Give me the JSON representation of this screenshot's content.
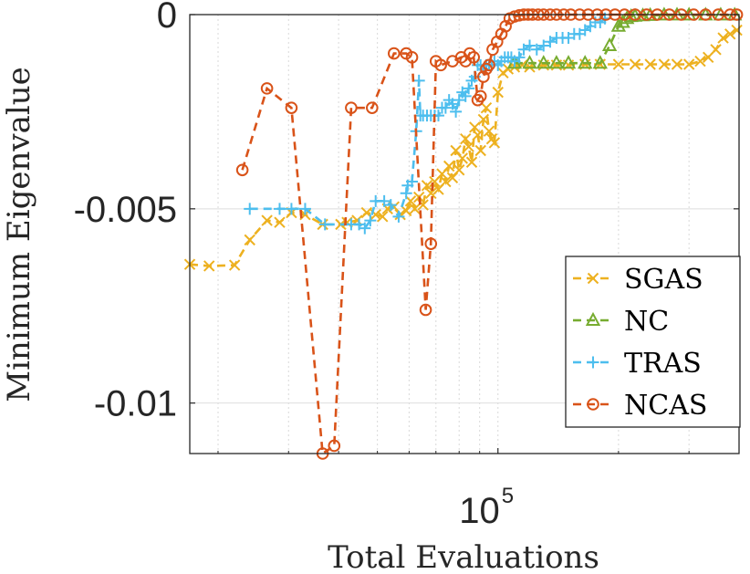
{
  "chart_data": {
    "type": "line",
    "title": "",
    "xlabel": "Total Evaluations",
    "ylabel": "Minimum Eigenvalue",
    "xscale": "log",
    "xlim": [
      17000,
      400000
    ],
    "ylim": [
      -0.0113,
      0.0
    ],
    "grid": true,
    "legend_position": "bottom-right",
    "x_ticks": [
      {
        "value": 100000,
        "base": "10",
        "exp": "5"
      }
    ],
    "x_minor_ticks": [
      20000,
      30000,
      40000,
      50000,
      60000,
      70000,
      80000,
      90000,
      200000,
      300000
    ],
    "y_ticks": [
      {
        "value": 0,
        "label": "0"
      },
      {
        "value": -0.005,
        "label": "-0.005"
      },
      {
        "value": -0.01,
        "label": "-0.01"
      }
    ],
    "series": [
      {
        "name": "SGAS",
        "color": "#EDB120",
        "marker": "x",
        "x": [
          17000,
          19000,
          22000,
          24000,
          26500,
          28500,
          30500,
          33000,
          36500,
          40500,
          42000,
          44500,
          47000,
          49500,
          51500,
          53000,
          55000,
          57000,
          59000,
          60500,
          62000,
          63500,
          65000,
          66500,
          68000,
          69500,
          71000,
          72500,
          74000,
          75500,
          77000,
          78500,
          80000,
          81500,
          83000,
          84500,
          86000,
          87500,
          89000,
          90500,
          92000,
          93500,
          95000,
          96500,
          98000,
          100000,
          103000,
          106000,
          110000,
          115000,
          120000,
          130000,
          140000,
          150000,
          165000,
          180000,
          200000,
          220000,
          240000,
          260000,
          280000,
          300000,
          320000,
          335000,
          350000,
          365000,
          380000,
          395000
        ],
        "y": [
          -0.00643,
          -0.00647,
          -0.00645,
          -0.0058,
          -0.0053,
          -0.00535,
          -0.0051,
          -0.00515,
          -0.0054,
          -0.0054,
          -0.00535,
          -0.0053,
          -0.0051,
          -0.00515,
          -0.0052,
          -0.005,
          -0.00495,
          -0.00515,
          -0.00505,
          -0.0048,
          -0.005,
          -0.0047,
          -0.0049,
          -0.0044,
          -0.0046,
          -0.0043,
          -0.0045,
          -0.0041,
          -0.0043,
          -0.0039,
          -0.0042,
          -0.0035,
          -0.004,
          -0.0037,
          -0.0032,
          -0.0034,
          -0.0038,
          -0.0029,
          -0.0031,
          -0.0035,
          -0.0027,
          -0.0024,
          -0.003,
          -0.0032,
          -0.0033,
          -0.002,
          -0.0015,
          -0.0014,
          -0.00135,
          -0.0013,
          -0.00135,
          -0.0013,
          -0.0013,
          -0.0013,
          -0.00128,
          -0.00128,
          -0.00128,
          -0.00128,
          -0.00128,
          -0.00128,
          -0.00128,
          -0.00128,
          -0.0012,
          -0.0011,
          -0.0009,
          -0.0006,
          -0.0005,
          -0.0004
        ]
      },
      {
        "name": "NC",
        "color": "#77AC30",
        "marker": "triangle",
        "x": [
          110000,
          120000,
          130000,
          140000,
          150000,
          165000,
          180000,
          190000,
          200000,
          205000,
          210000,
          215000,
          220000,
          230000,
          240000,
          260000,
          280000,
          300000,
          330000,
          360000,
          390000
        ],
        "y": [
          -0.00125,
          -0.00125,
          -0.00125,
          -0.00125,
          -0.00125,
          -0.00125,
          -0.00125,
          -0.0008,
          -0.0003,
          -0.0002,
          -0.0001,
          -5e-05,
          -4e-05,
          -3e-05,
          -2e-05,
          -1e-05,
          -1e-05,
          -1e-05,
          -1e-05,
          -1e-05,
          -1e-05
        ]
      },
      {
        "name": "TRAS",
        "color": "#4DBEEE",
        "marker": "plus",
        "x": [
          24000,
          28500,
          30500,
          33000,
          37000,
          43000,
          45000,
          46500,
          48000,
          49500,
          52000,
          54000,
          56500,
          59000,
          59500,
          61000,
          62500,
          63500,
          64000,
          65000,
          66500,
          68000,
          69500,
          71000,
          72500,
          74000,
          75500,
          77000,
          78500,
          80000,
          81500,
          83000,
          84500,
          86000,
          87500,
          89000,
          90500,
          92000,
          93500,
          95000,
          96500,
          98000,
          100000,
          102000,
          104000,
          106000,
          108000,
          110000,
          113000,
          116000,
          120000,
          125000,
          130000,
          135000,
          140000,
          145000,
          150000,
          155000,
          160000,
          165000,
          170000,
          175000,
          180000,
          185000
        ],
        "y": [
          -0.005,
          -0.005,
          -0.005,
          -0.005,
          -0.0054,
          -0.0054,
          -0.0054,
          -0.0055,
          -0.0053,
          -0.0048,
          -0.0048,
          -0.0049,
          -0.0052,
          -0.0046,
          -0.0044,
          -0.0043,
          -0.003,
          -0.0017,
          -0.0026,
          -0.0026,
          -0.0026,
          -0.0026,
          -0.0026,
          -0.0026,
          -0.0024,
          -0.0024,
          -0.0022,
          -0.0023,
          -0.0025,
          -0.0022,
          -0.002,
          -0.0021,
          -0.0019,
          -0.0017,
          -0.0016,
          -0.0013,
          -0.0013,
          -0.0014,
          -0.0013,
          -0.0013,
          -0.0013,
          -0.0012,
          -0.0013,
          -0.0012,
          -0.0011,
          -0.0011,
          -0.0011,
          -0.0012,
          -0.0011,
          -0.0009,
          -0.0008,
          -0.0009,
          -0.0008,
          -0.0007,
          -0.0006,
          -0.0006,
          -0.0006,
          -0.0005,
          -0.0005,
          -0.0004,
          -0.0003,
          -0.0002,
          -0.0002,
          -0.0001
        ]
      },
      {
        "name": "NCAS",
        "color": "#D95319",
        "marker": "circle",
        "x": [
          23000,
          26500,
          30500,
          36500,
          39000,
          43000,
          48500,
          55000,
          59000,
          61000,
          66000,
          68000,
          70000,
          72000,
          77000,
          81000,
          83000,
          85000,
          87000,
          89000,
          90500,
          92000,
          93500,
          95000,
          97000,
          99500,
          102000,
          104500,
          107000,
          110000,
          113000,
          116000,
          119000,
          122000,
          126000,
          130000,
          135000,
          140000,
          146000,
          152000,
          160000,
          168000,
          177000,
          186000,
          196000,
          207000,
          220000,
          235000,
          250000,
          268000,
          287000,
          308000,
          330000,
          355000,
          380000,
          395000
        ],
        "y": [
          -0.004,
          -0.0019,
          -0.0024,
          -0.0113,
          -0.0111,
          -0.0024,
          -0.0024,
          -0.001,
          -0.001,
          -0.0011,
          -0.0076,
          -0.0059,
          -0.0012,
          -0.0013,
          -0.0012,
          -0.0011,
          -0.0012,
          -0.001,
          -0.0011,
          -0.0022,
          -0.0021,
          -0.0016,
          -0.0014,
          -0.0013,
          -0.0009,
          -0.0007,
          -0.0005,
          -0.0003,
          -0.0001,
          -5e-05,
          -2e-05,
          0,
          0,
          0,
          0,
          0,
          0,
          0,
          0,
          0,
          0,
          0,
          0,
          0,
          0,
          0,
          0,
          0,
          0,
          0,
          0,
          0,
          0,
          0,
          0,
          0
        ]
      }
    ]
  }
}
